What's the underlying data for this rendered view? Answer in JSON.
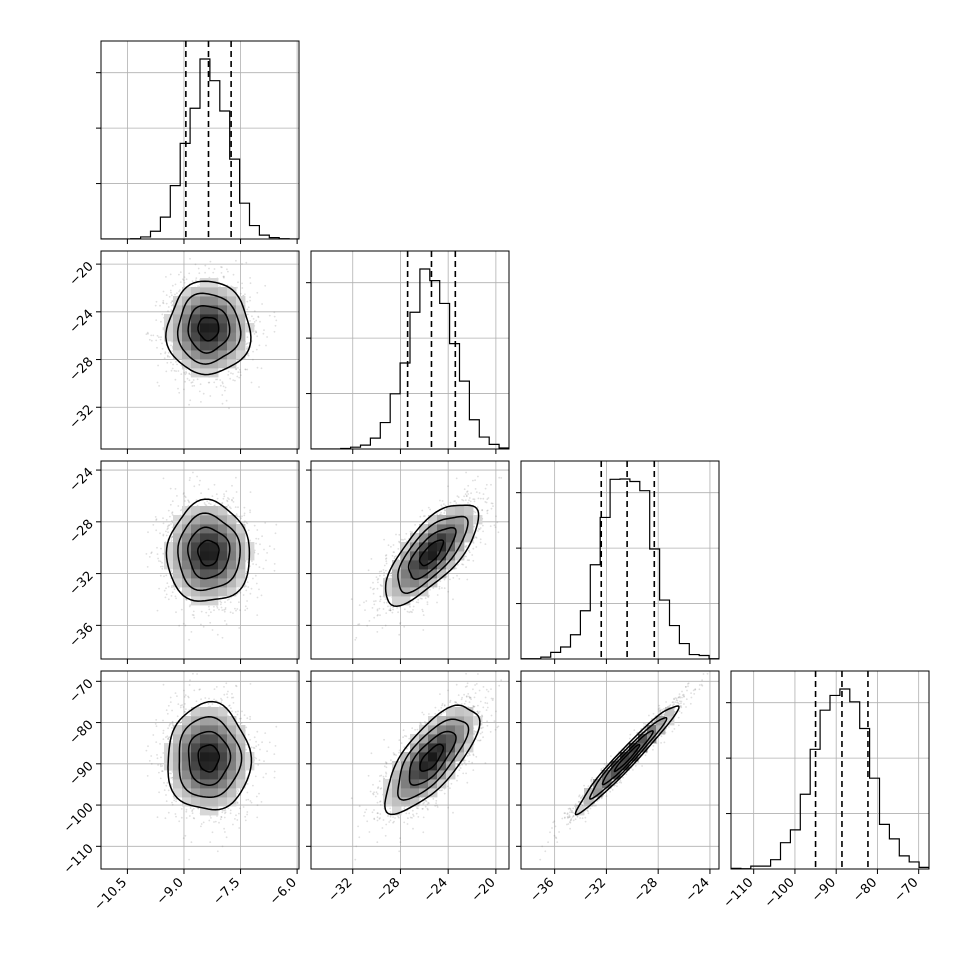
{
  "chart_data": {
    "type": "corner",
    "grid": true,
    "parameters": [
      {
        "index": 0,
        "label": "",
        "range": [
          -11.2,
          -5.95
        ],
        "ticks": [
          -10.5,
          -9.0,
          -7.5,
          -6.0
        ],
        "tick_labels": [
          "−10.5",
          "−9.0",
          "−7.5",
          "−6.0"
        ],
        "mean": -8.35,
        "sd": 0.55,
        "quantiles": [
          -8.95,
          -8.35,
          -7.75
        ]
      },
      {
        "index": 1,
        "label": "",
        "range": [
          -35.5,
          -18.9
        ],
        "ticks": [
          -32,
          -28,
          -24,
          -20
        ],
        "tick_labels": [
          "−32",
          "−28",
          "−24",
          "−20"
        ],
        "mean": -25.4,
        "sd": 1.95,
        "quantiles": [
          -27.4,
          -25.4,
          -23.4
        ]
      },
      {
        "index": 2,
        "label": "",
        "range": [
          -38.6,
          -23.3
        ],
        "ticks": [
          -36,
          -32,
          -28,
          -24
        ],
        "tick_labels": [
          "−36",
          "−32",
          "−28",
          "−24"
        ],
        "mean": -30.4,
        "sd": 1.95,
        "quantiles": [
          -32.4,
          -30.4,
          -28.3
        ]
      },
      {
        "index": 3,
        "label": "",
        "range": [
          -115.5,
          -67.5
        ],
        "ticks": [
          -110,
          -100,
          -90,
          -80,
          -70
        ],
        "tick_labels": [
          "−110",
          "−100",
          "−90",
          "−80",
          "−70"
        ],
        "mean": -88.6,
        "sd": 6.5,
        "quantiles": [
          -95.0,
          -88.6,
          -82.3
        ]
      }
    ],
    "correlations": [
      {
        "pair": [
          0,
          1
        ],
        "rho": 0.0
      },
      {
        "pair": [
          0,
          2
        ],
        "rho": 0.0
      },
      {
        "pair": [
          0,
          3
        ],
        "rho": 0.0
      },
      {
        "pair": [
          1,
          2
        ],
        "rho": 0.72
      },
      {
        "pair": [
          1,
          3
        ],
        "rho": 0.72
      },
      {
        "pair": [
          2,
          3
        ],
        "rho": 0.97
      }
    ],
    "histogram_bins": 20,
    "sample_count": 4000,
    "contour_levels_sigma": [
      0.5,
      1.0,
      1.5,
      2.0
    ],
    "colors": {
      "points": "#7f7f7f",
      "line": "#000000",
      "grid": "#b0b0b0",
      "frame": "#000000"
    }
  }
}
